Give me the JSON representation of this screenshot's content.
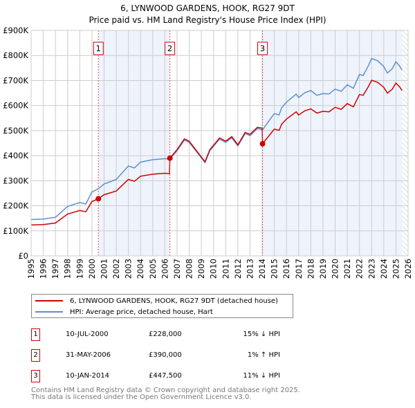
{
  "chart_data": {
    "type": "line",
    "title": "6, LYNWOOD GARDENS, HOOK, RG27 9DT",
    "subtitle": "Price paid vs. HM Land Registry's House Price Index (HPI)",
    "xlim": [
      1995,
      2026
    ],
    "ylim": [
      0,
      900000
    ],
    "yticks": [
      {
        "v": 0,
        "l": "£0"
      },
      {
        "v": 100000,
        "l": "£100K"
      },
      {
        "v": 200000,
        "l": "£200K"
      },
      {
        "v": 300000,
        "l": "£300K"
      },
      {
        "v": 400000,
        "l": "£400K"
      },
      {
        "v": 500000,
        "l": "£500K"
      },
      {
        "v": 600000,
        "l": "£600K"
      },
      {
        "v": 700000,
        "l": "£700K"
      },
      {
        "v": 800000,
        "l": "£800K"
      },
      {
        "v": 900000,
        "l": "£900K"
      }
    ],
    "xticks": [
      "1995",
      "1996",
      "1997",
      "1998",
      "1999",
      "2000",
      "2001",
      "2002",
      "2003",
      "2004",
      "2005",
      "2006",
      "2007",
      "2008",
      "2009",
      "2010",
      "2011",
      "2012",
      "2013",
      "2014",
      "2015",
      "2016",
      "2017",
      "2018",
      "2019",
      "2020",
      "2021",
      "2022",
      "2023",
      "2024",
      "2025",
      "2026"
    ],
    "grid": true,
    "series": [
      {
        "name": "6, LYNWOOD GARDENS, HOOK, RG27 9DT (detached house)",
        "color": "#cc0000",
        "x": [
          1995,
          1996,
          1997,
          1998,
          1999,
          1999.5,
          2000,
          2000.53,
          2001,
          2002,
          2003,
          2003.5,
          2004,
          2005,
          2006,
          2006.38,
          2006.41,
          2007,
          2007.6,
          2008,
          2008.6,
          2009.3,
          2009.7,
          2010.5,
          2011,
          2011.5,
          2012,
          2012.6,
          2013,
          2013.6,
          2014.0,
          2014.03,
          2014.5,
          2015,
          2015.4,
          2015.6,
          2016,
          2016.8,
          2017,
          2017.5,
          2018,
          2018.5,
          2019,
          2019.5,
          2020,
          2020.5,
          2021,
          2021.5,
          2022,
          2022.3,
          2022.7,
          2023,
          2023.5,
          2024,
          2024.3,
          2024.7,
          2025,
          2025.3,
          2025.5
        ],
        "y": [
          123,
          125,
          131,
          167,
          181,
          176,
          217,
          228,
          244,
          259,
          305,
          298,
          318,
          326,
          330,
          328,
          390,
          424,
          467,
          458,
          420,
          376,
          424,
          471,
          458,
          476,
          443,
          493,
          485,
          513,
          510,
          447.5,
          476,
          506,
          501,
          526,
          546,
          575,
          562,
          579,
          587,
          570,
          577,
          575,
          593,
          585,
          608,
          595,
          644,
          641,
          673,
          701,
          693,
          673,
          650,
          665,
          690,
          675,
          660
        ]
      },
      {
        "name": "HPI: Average price, detached house, Hart",
        "color": "#5b8fd0",
        "x": [
          1995,
          1996,
          1997,
          1998,
          1999,
          1999.5,
          2000,
          2000.53,
          2001,
          2002,
          2003,
          2003.5,
          2004,
          2005,
          2006,
          2006.41,
          2007,
          2007.6,
          2008,
          2008.6,
          2009.3,
          2009.7,
          2010.5,
          2011,
          2011.5,
          2012,
          2012.6,
          2013,
          2013.6,
          2014.03,
          2014.5,
          2015,
          2015.4,
          2015.6,
          2016,
          2016.8,
          2017,
          2017.5,
          2018,
          2018.5,
          2019,
          2019.5,
          2020,
          2020.5,
          2021,
          2021.5,
          2022,
          2022.3,
          2022.7,
          2023,
          2023.5,
          2024,
          2024.3,
          2024.7,
          2025,
          2025.3,
          2025.5
        ],
        "y": [
          145,
          147,
          154,
          197,
          213,
          207,
          255,
          268,
          287,
          305,
          359,
          351,
          374,
          384,
          388,
          386,
          420,
          462,
          453,
          416,
          372,
          420,
          466,
          453,
          471,
          439,
          488,
          480,
          508,
          503,
          535,
          568,
          563,
          591,
          614,
          646,
          632,
          651,
          660,
          641,
          648,
          646,
          666,
          657,
          683,
          669,
          724,
          720,
          756,
          788,
          779,
          756,
          730,
          747,
          775,
          758,
          742
        ]
      }
    ],
    "y_units": "thousands GBP",
    "sales": [
      {
        "n": "1",
        "x": 2000.53,
        "date": "10-JUL-2000",
        "price": "£228,000",
        "value": 228,
        "hpi": "15% ↓ HPI"
      },
      {
        "n": "2",
        "x": 2006.41,
        "date": "31-MAY-2006",
        "price": "£390,000",
        "value": 390,
        "hpi": "1% ↑ HPI"
      },
      {
        "n": "3",
        "x": 2014.03,
        "date": "10-JAN-2014",
        "price": "£447,500",
        "value": 447.5,
        "hpi": "11% ↓ HPI"
      }
    ],
    "forecast_from": 2025.5,
    "legend_position": "below"
  },
  "footer": {
    "line1": "Contains HM Land Registry data © Crown copyright and database right 2025.",
    "line2": "This data is licensed under the Open Government Licence v3.0."
  }
}
